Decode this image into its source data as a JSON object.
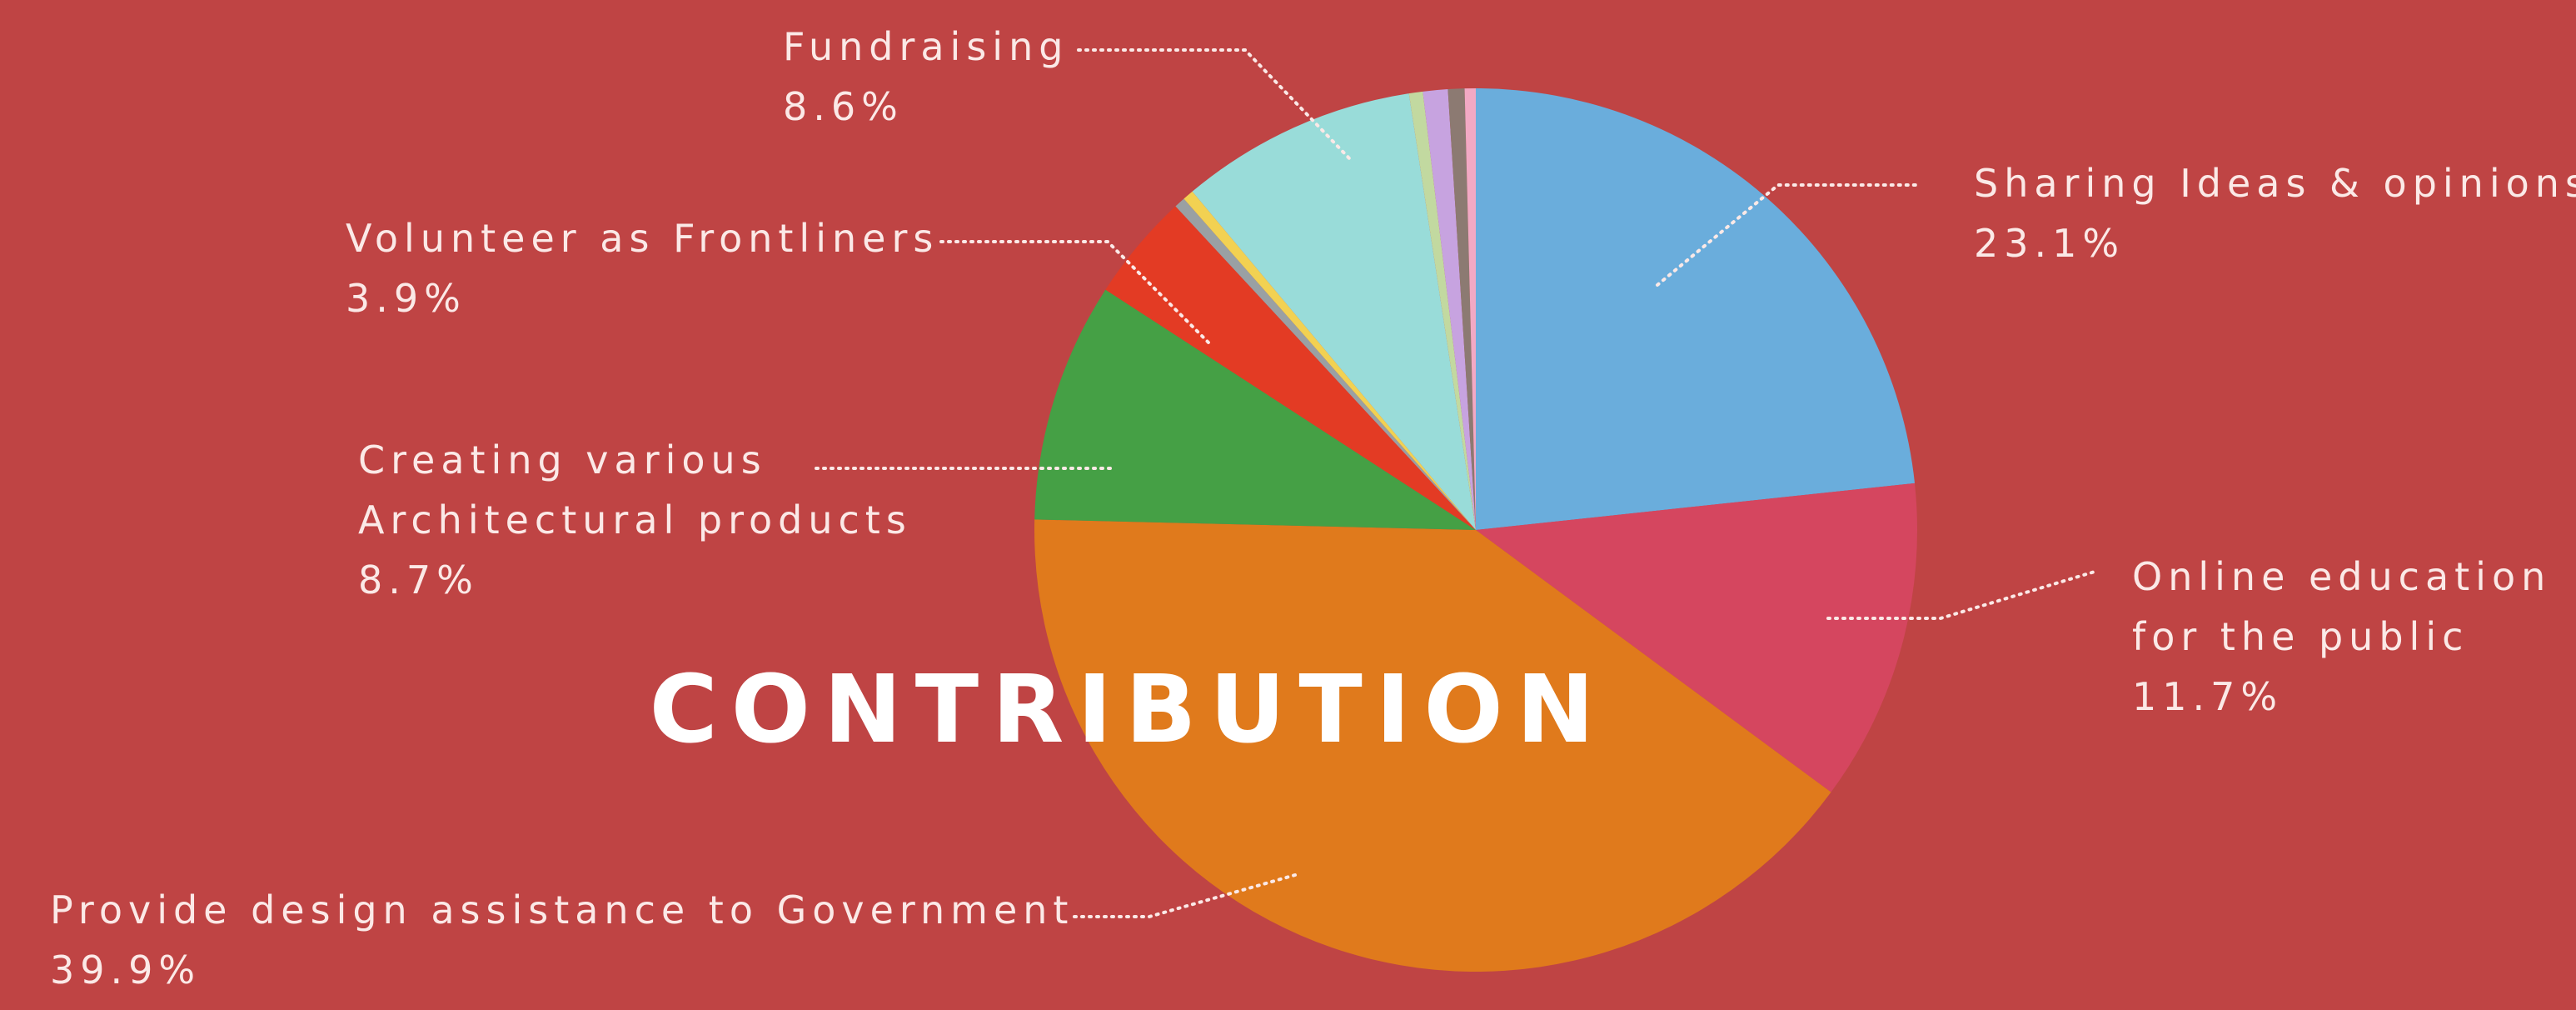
{
  "chart_data": {
    "type": "pie",
    "title": "CONTRIBUTION",
    "colors": {
      "background": "#bf4444"
    },
    "slices": [
      {
        "id": "sharing",
        "label": [
          "Sharing Ideas & opinions"
        ],
        "percent_text": "23.1%",
        "value": 23.1,
        "color": "#6aaddc"
      },
      {
        "id": "online",
        "label": [
          "Online education",
          "for the public"
        ],
        "percent_text": "11.7%",
        "value": 11.7,
        "color": "#d5465f"
      },
      {
        "id": "design",
        "label": [
          "Provide design assistance to Government"
        ],
        "percent_text": "39.9%",
        "value": 39.9,
        "color": "#e07a1c"
      },
      {
        "id": "creating",
        "label": [
          "Creating various",
          "Architectural products"
        ],
        "percent_text": "8.7%",
        "value": 8.7,
        "color": "#45a045"
      },
      {
        "id": "volunteer",
        "label": [
          "Volunteer as Frontliners"
        ],
        "percent_text": "3.9%",
        "value": 3.9,
        "color": "#e33b24"
      },
      {
        "id": "minor1",
        "label": [],
        "percent_text": "",
        "value": 0.4,
        "color": "#9aa0a3"
      },
      {
        "id": "minor2",
        "label": [],
        "percent_text": "",
        "value": 0.4,
        "color": "#f2d152"
      },
      {
        "id": "fundraising",
        "label": [
          "Fundraising"
        ],
        "percent_text": "8.6%",
        "value": 8.6,
        "color": "#99dcd9"
      },
      {
        "id": "minor3",
        "label": [],
        "percent_text": "",
        "value": 0.5,
        "color": "#c2d9a0"
      },
      {
        "id": "minor4",
        "label": [],
        "percent_text": "",
        "value": 0.9,
        "color": "#c7a3e0"
      },
      {
        "id": "minor5",
        "label": [],
        "percent_text": "",
        "value": 0.6,
        "color": "#8c7a72"
      },
      {
        "id": "minor6",
        "label": [],
        "percent_text": "",
        "value": 0.4,
        "color": "#f2a9c4"
      }
    ]
  }
}
